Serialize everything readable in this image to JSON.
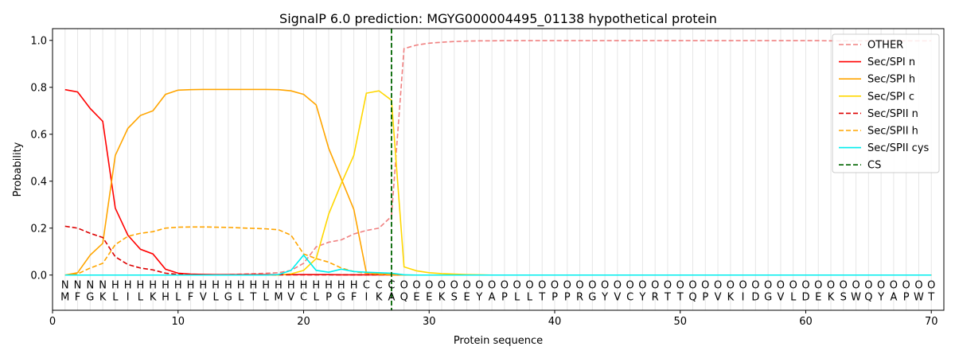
{
  "chart_data": {
    "type": "line",
    "title": "SignalP 6.0 prediction: MGYG000004495_01138 hypothetical protein",
    "xlabel": "Protein sequence",
    "ylabel": "Probability",
    "xlim": [
      0,
      71
    ],
    "ylim": [
      -0.15,
      1.05
    ],
    "x_ticks": [
      0,
      10,
      20,
      30,
      40,
      50,
      60,
      70
    ],
    "y_ticks": [
      0.0,
      0.2,
      0.4,
      0.6,
      0.8,
      1.0
    ],
    "x_tick_labels": [
      "0",
      "10",
      "20",
      "30",
      "40",
      "50",
      "60",
      "70"
    ],
    "y_tick_labels": [
      "0.0",
      "0.2",
      "0.4",
      "0.6",
      "0.8",
      "1.0"
    ],
    "grid": "vertical lines at each residue",
    "legend_position": "top-right",
    "sequence": [
      "M",
      "F",
      "G",
      "K",
      "L",
      "I",
      "L",
      "K",
      "H",
      "L",
      "F",
      "V",
      "L",
      "G",
      "L",
      "T",
      "L",
      "M",
      "V",
      "C",
      "L",
      "P",
      "G",
      "F",
      "I",
      "K",
      "A",
      "Q",
      "E",
      "E",
      "K",
      "S",
      "E",
      "Y",
      "A",
      "P",
      "L",
      "L",
      "T",
      "P",
      "P",
      "R",
      "G",
      "Y",
      "V",
      "C",
      "Y",
      "R",
      "T",
      "T",
      "Q",
      "P",
      "V",
      "K",
      "I",
      "D",
      "G",
      "V",
      "L",
      "D",
      "E",
      "K",
      "S",
      "W",
      "Q",
      "Y",
      "A",
      "P",
      "W",
      "T"
    ],
    "region_labels": [
      "N",
      "N",
      "N",
      "N",
      "H",
      "H",
      "H",
      "H",
      "H",
      "H",
      "H",
      "H",
      "H",
      "H",
      "H",
      "H",
      "H",
      "H",
      "H",
      "H",
      "H",
      "H",
      "H",
      "H",
      "C",
      "C",
      "C",
      "O",
      "O",
      "O",
      "O",
      "O",
      "O",
      "O",
      "O",
      "O",
      "O",
      "O",
      "O",
      "O",
      "O",
      "O",
      "O",
      "O",
      "O",
      "O",
      "O",
      "O",
      "O",
      "O",
      "O",
      "O",
      "O",
      "O",
      "O",
      "O",
      "O",
      "O",
      "O",
      "O",
      "O",
      "O",
      "O",
      "O",
      "O",
      "O",
      "O",
      "O",
      "O",
      "O"
    ],
    "region_colors": {
      "N": "#ff0000",
      "H": "#ffa500",
      "C": "#ffd700",
      "O": "#808080"
    },
    "cleavage_site": 27,
    "series": [
      {
        "name": "OTHER",
        "color": "#f08080",
        "dash": "dashed",
        "values": [
          0.0,
          0.0,
          0.0,
          0.0,
          0.0,
          0.0,
          0.0,
          0.0,
          0.0,
          0.0,
          0.0,
          0.0,
          0.0,
          0.002,
          0.004,
          0.006,
          0.008,
          0.01,
          0.02,
          0.05,
          0.12,
          0.14,
          0.15,
          0.175,
          0.19,
          0.2,
          0.25,
          0.965,
          0.98,
          0.988,
          0.992,
          0.995,
          0.997,
          0.998,
          0.998,
          0.999,
          0.999,
          0.999,
          0.999,
          0.999,
          0.999,
          0.999,
          0.999,
          0.999,
          0.999,
          0.999,
          0.999,
          0.999,
          0.999,
          0.999,
          0.999,
          0.999,
          0.999,
          0.999,
          0.999,
          0.999,
          0.999,
          0.999,
          0.999,
          0.999,
          0.999,
          0.998,
          0.998,
          0.998,
          0.998,
          0.998,
          0.998,
          0.998,
          0.998,
          0.998
        ]
      },
      {
        "name": "Sec/SPI n",
        "color": "#ff0000",
        "dash": "solid",
        "values": [
          0.79,
          0.78,
          0.71,
          0.655,
          0.285,
          0.17,
          0.11,
          0.09,
          0.025,
          0.008,
          0.004,
          0.003,
          0.002,
          0.002,
          0.002,
          0.002,
          0.002,
          0.002,
          0.002,
          0.002,
          0.002,
          0.002,
          0.001,
          0.001,
          0.001,
          0.001,
          0.001,
          0,
          0,
          0,
          0,
          0,
          0,
          0,
          0,
          0,
          0,
          0,
          0,
          0,
          0,
          0,
          0,
          0,
          0,
          0,
          0,
          0,
          0,
          0,
          0,
          0,
          0,
          0,
          0,
          0,
          0,
          0,
          0,
          0,
          0,
          0,
          0,
          0,
          0,
          0,
          0,
          0,
          0,
          0
        ]
      },
      {
        "name": "Sec/SPI h",
        "color": "#ffa500",
        "dash": "solid",
        "values": [
          0.0,
          0.01,
          0.085,
          0.135,
          0.51,
          0.625,
          0.68,
          0.7,
          0.77,
          0.788,
          0.79,
          0.791,
          0.791,
          0.791,
          0.791,
          0.791,
          0.791,
          0.79,
          0.785,
          0.77,
          0.725,
          0.54,
          0.41,
          0.28,
          0.01,
          0.005,
          0.002,
          0,
          0,
          0,
          0,
          0,
          0,
          0,
          0,
          0,
          0,
          0,
          0,
          0,
          0,
          0,
          0,
          0,
          0,
          0,
          0,
          0,
          0,
          0,
          0,
          0,
          0,
          0,
          0,
          0,
          0,
          0,
          0,
          0,
          0,
          0,
          0,
          0,
          0,
          0,
          0,
          0,
          0,
          0
        ]
      },
      {
        "name": "Sec/SPI c",
        "color": "#ffd700",
        "dash": "solid",
        "values": [
          0.0,
          0.0,
          0.0,
          0.0,
          0.0,
          0.0,
          0.0,
          0.0,
          0.0,
          0.0,
          0.0,
          0.0,
          0.0,
          0.0,
          0.0,
          0.0,
          0.0,
          0.0,
          0.005,
          0.02,
          0.07,
          0.26,
          0.39,
          0.51,
          0.775,
          0.785,
          0.745,
          0.035,
          0.018,
          0.01,
          0.006,
          0.004,
          0.002,
          0.001,
          0,
          0,
          0,
          0,
          0,
          0,
          0,
          0,
          0,
          0,
          0,
          0,
          0,
          0,
          0,
          0,
          0,
          0,
          0,
          0,
          0,
          0,
          0,
          0,
          0,
          0,
          0,
          0,
          0,
          0,
          0,
          0,
          0,
          0,
          0,
          0
        ]
      },
      {
        "name": "Sec/SPII n",
        "color": "#dd0000",
        "dash": "dashed",
        "values": [
          0.208,
          0.2,
          0.178,
          0.16,
          0.078,
          0.045,
          0.03,
          0.022,
          0.008,
          0.003,
          0.002,
          0.001,
          0.001,
          0.001,
          0.001,
          0.001,
          0.001,
          0.001,
          0.001,
          0.001,
          0.001,
          0.001,
          0.001,
          0.001,
          0.001,
          0.001,
          0.001,
          0,
          0,
          0,
          0,
          0,
          0,
          0,
          0,
          0,
          0,
          0,
          0,
          0,
          0,
          0,
          0,
          0,
          0,
          0,
          0,
          0,
          0,
          0,
          0,
          0,
          0,
          0,
          0,
          0,
          0,
          0,
          0,
          0,
          0,
          0,
          0,
          0,
          0,
          0,
          0,
          0,
          0,
          0
        ]
      },
      {
        "name": "Sec/SPII h",
        "color": "#ffa500",
        "dash": "dashed",
        "values": [
          0.0,
          0.005,
          0.03,
          0.05,
          0.13,
          0.165,
          0.178,
          0.185,
          0.2,
          0.204,
          0.205,
          0.205,
          0.204,
          0.203,
          0.201,
          0.199,
          0.197,
          0.193,
          0.17,
          0.09,
          0.07,
          0.055,
          0.03,
          0.015,
          0.008,
          0.003,
          0.001,
          0,
          0,
          0,
          0,
          0,
          0,
          0,
          0,
          0,
          0,
          0,
          0,
          0,
          0,
          0,
          0,
          0,
          0,
          0,
          0,
          0,
          0,
          0,
          0,
          0,
          0,
          0,
          0,
          0,
          0,
          0,
          0,
          0,
          0,
          0,
          0,
          0,
          0,
          0,
          0,
          0,
          0,
          0
        ]
      },
      {
        "name": "Sec/SPII cys",
        "color": "#00eeee",
        "dash": "solid",
        "values": [
          0.0,
          0.0,
          0.0,
          0.0,
          0.0,
          0.0,
          0.0,
          0.0,
          0.0,
          0.0,
          0.0,
          0.0,
          0.0,
          0.0,
          0.0,
          0.0,
          0.0,
          0.002,
          0.02,
          0.085,
          0.02,
          0.012,
          0.025,
          0.015,
          0.012,
          0.01,
          0.008,
          0.001,
          0,
          0,
          0,
          0,
          0,
          0,
          0,
          0,
          0,
          0,
          0,
          0,
          0,
          0,
          0,
          0,
          0,
          0,
          0,
          0,
          0,
          0,
          0,
          0,
          0,
          0,
          0,
          0,
          0,
          0,
          0,
          0,
          0,
          0,
          0,
          0,
          0,
          0,
          0,
          0,
          0,
          0
        ]
      },
      {
        "name": "CS",
        "color": "#006400",
        "dash": "dashed",
        "values": []
      }
    ]
  }
}
